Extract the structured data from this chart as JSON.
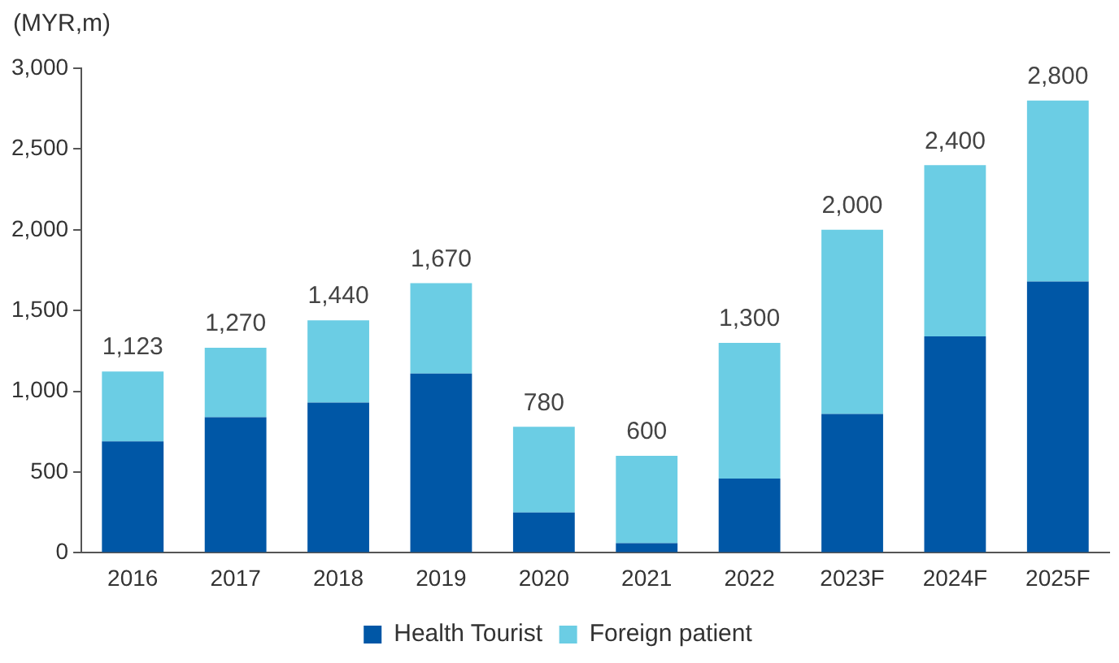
{
  "chart_data": {
    "type": "bar",
    "stacked": true,
    "ylabel": "(MYR,m)",
    "categories": [
      "2016",
      "2017",
      "2018",
      "2019",
      "2020",
      "2021",
      "2022",
      "2023F",
      "2024F",
      "2025F"
    ],
    "series": [
      {
        "name": "Health Tourist",
        "color": "#0057a6",
        "values": [
          690,
          840,
          930,
          1110,
          250,
          60,
          460,
          860,
          1340,
          1680
        ]
      },
      {
        "name": "Foreign patient",
        "color": "#6bcde4",
        "values": [
          433,
          430,
          510,
          560,
          530,
          540,
          840,
          1140,
          1060,
          1120
        ]
      }
    ],
    "totals": [
      "1,123",
      "1,270",
      "1,440",
      "1,670",
      "780",
      "600",
      "1,300",
      "2,000",
      "2,400",
      "2,800"
    ],
    "ylim": [
      0,
      3000
    ],
    "yticks": [
      {
        "value": 0,
        "label": "0"
      },
      {
        "value": 500,
        "label": "500"
      },
      {
        "value": 1000,
        "label": "1,000"
      },
      {
        "value": 1500,
        "label": "1,500"
      },
      {
        "value": 2000,
        "label": "2,000"
      },
      {
        "value": 2500,
        "label": "2,500"
      },
      {
        "value": 3000,
        "label": "3,000"
      }
    ],
    "grid": false,
    "legend": "bottom"
  }
}
